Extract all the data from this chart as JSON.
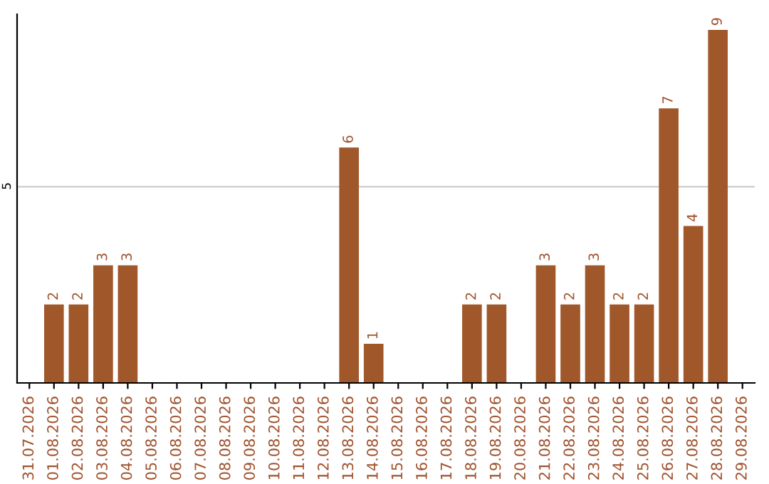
{
  "chart_data": {
    "type": "bar",
    "categories": [
      "31.07.2026",
      "01.08.2026",
      "02.08.2026",
      "03.08.2026",
      "04.08.2026",
      "05.08.2026",
      "06.08.2026",
      "07.08.2026",
      "08.08.2026",
      "09.08.2026",
      "10.08.2026",
      "11.08.2026",
      "12.08.2026",
      "13.08.2026",
      "14.08.2026",
      "15.08.2026",
      "16.08.2026",
      "17.08.2026",
      "18.08.2026",
      "19.08.2026",
      "20.08.2026",
      "21.08.2026",
      "22.08.2026",
      "23.08.2026",
      "24.08.2026",
      "25.08.2026",
      "26.08.2026",
      "27.08.2026",
      "28.08.2026",
      "29.08.2026"
    ],
    "values": [
      0,
      2,
      2,
      3,
      3,
      0,
      0,
      0,
      0,
      0,
      0,
      0,
      0,
      6,
      1,
      0,
      0,
      0,
      2,
      2,
      0,
      3,
      2,
      3,
      2,
      2,
      7,
      4,
      9,
      0
    ],
    "value_labels": [
      null,
      "2",
      "2",
      "3",
      "3",
      null,
      null,
      null,
      null,
      null,
      null,
      null,
      null,
      "6",
      "1",
      null,
      null,
      null,
      "2",
      "2",
      null,
      "3",
      "2",
      "3",
      "2",
      "2",
      "7",
      "4",
      "9",
      null
    ],
    "color": "#a0572a",
    "ylim": [
      0,
      9.4
    ],
    "yticks": [
      5
    ],
    "grid": "y",
    "legend": false
  }
}
